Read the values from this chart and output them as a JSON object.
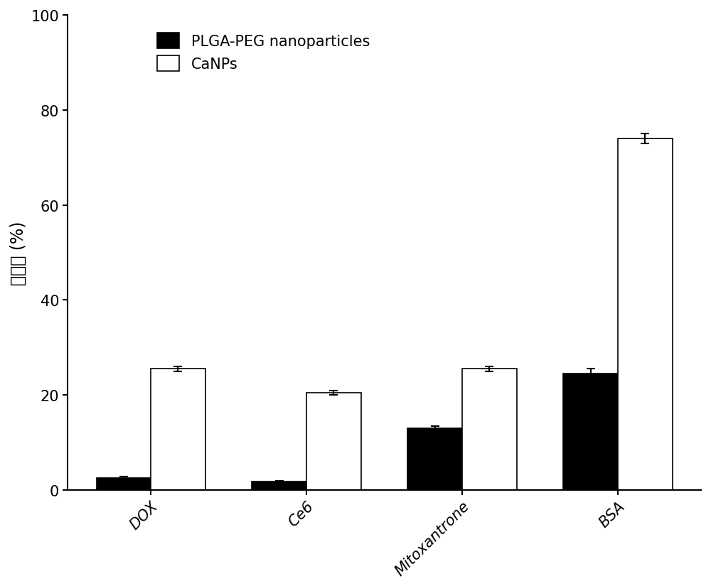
{
  "categories": [
    "DOX",
    "Ce6",
    "Mitoxantrone",
    "BSA"
  ],
  "plga_values": [
    2.5,
    1.8,
    13.0,
    24.5
  ],
  "plga_errors": [
    0.3,
    0.2,
    0.5,
    1.0
  ],
  "canps_values": [
    25.5,
    20.5,
    25.5,
    74.0
  ],
  "canps_errors": [
    0.5,
    0.4,
    0.5,
    1.0
  ],
  "plga_color": "#000000",
  "canps_color": "#ffffff",
  "bar_edge_color": "#000000",
  "ylabel": "载药量 (%)",
  "ylim": [
    0,
    100
  ],
  "yticks": [
    0,
    20,
    40,
    60,
    80,
    100
  ],
  "bar_width": 0.35,
  "legend_labels": [
    "PLGA-PEG nanoparticles",
    "CaNPs"
  ],
  "legend_fontsize": 15,
  "tick_fontsize": 15,
  "label_fontsize": 17,
  "xtick_rotation": 45,
  "background_color": "#ffffff",
  "figure_bg": "#ffffff",
  "spine_linewidth": 1.5,
  "bar_linewidth": 1.2,
  "errorbar_linewidth": 1.5,
  "capsize": 4
}
